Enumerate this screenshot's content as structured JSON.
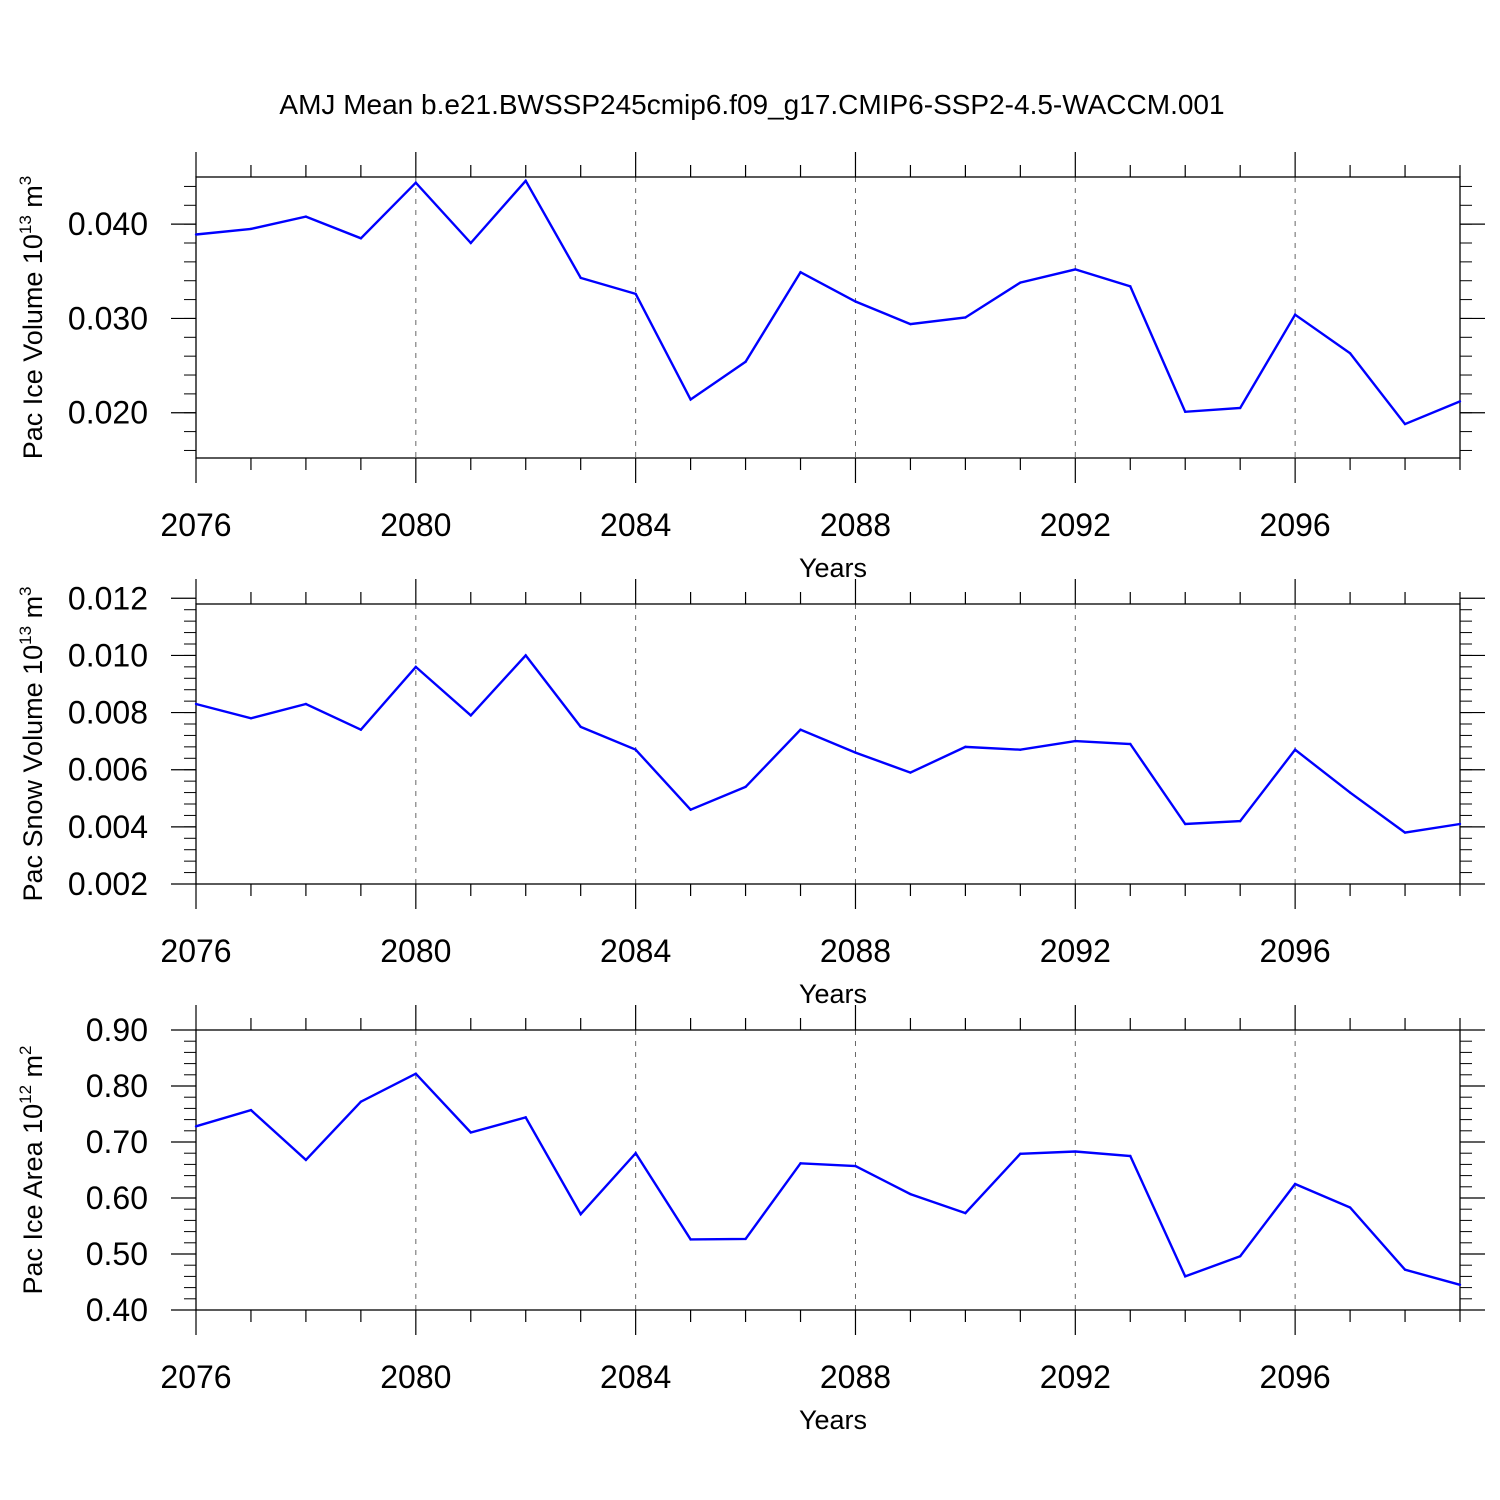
{
  "title": "AMJ Mean b.e21.BWSSP245cmip6.f09_g17.CMIP6-SSP2-4.5-WACCM.001",
  "colors": {
    "series": "#0000ff",
    "axis": "#000000",
    "grid": "#666666"
  },
  "chart_data": [
    {
      "type": "line",
      "xlabel": "Years",
      "ylabel": {
        "prefix": "Pac Ice Volume 10",
        "exponent": "13",
        "unit": " m",
        "unit_exponent": "3"
      },
      "xlim": [
        2076,
        2099
      ],
      "ylim": [
        0.0152,
        0.045
      ],
      "xticks": [
        2076,
        2080,
        2084,
        2088,
        2092,
        2096
      ],
      "xtick_labels": [
        "2076",
        "2080",
        "2084",
        "2088",
        "2092",
        "2096"
      ],
      "yticks": [
        0.02,
        0.03,
        0.04
      ],
      "ytick_labels": [
        "0.020",
        "0.030",
        "0.040"
      ],
      "yminor_step": 0.002,
      "x": [
        2076,
        2077,
        2078,
        2079,
        2080,
        2081,
        2082,
        2083,
        2084,
        2085,
        2086,
        2087,
        2088,
        2089,
        2090,
        2091,
        2092,
        2093,
        2094,
        2095,
        2096,
        2097,
        2098,
        2099
      ],
      "values": [
        0.0389,
        0.0395,
        0.0408,
        0.0385,
        0.0444,
        0.038,
        0.0446,
        0.0343,
        0.0326,
        0.0214,
        0.0254,
        0.0349,
        0.0318,
        0.0294,
        0.0301,
        0.0338,
        0.0352,
        0.0334,
        0.0201,
        0.0205,
        0.0304,
        0.0263,
        0.0188,
        0.0212
      ]
    },
    {
      "type": "line",
      "xlabel": "Years",
      "ylabel": {
        "prefix": "Pac Snow Volume 10",
        "exponent": "13",
        "unit": " m",
        "unit_exponent": "3"
      },
      "xlim": [
        2076,
        2099
      ],
      "ylim": [
        0.002,
        0.0118
      ],
      "xticks": [
        2076,
        2080,
        2084,
        2088,
        2092,
        2096
      ],
      "xtick_labels": [
        "2076",
        "2080",
        "2084",
        "2088",
        "2092",
        "2096"
      ],
      "yticks": [
        0.002,
        0.004,
        0.006,
        0.008,
        0.01,
        0.012
      ],
      "ytick_labels": [
        "0.002",
        "0.004",
        "0.006",
        "0.008",
        "0.010",
        "0.012"
      ],
      "yminor_step": 0.0004,
      "x": [
        2076,
        2077,
        2078,
        2079,
        2080,
        2081,
        2082,
        2083,
        2084,
        2085,
        2086,
        2087,
        2088,
        2089,
        2090,
        2091,
        2092,
        2093,
        2094,
        2095,
        2096,
        2097,
        2098,
        2099
      ],
      "values": [
        0.0083,
        0.0078,
        0.0083,
        0.0074,
        0.0096,
        0.0079,
        0.01,
        0.0075,
        0.0067,
        0.0046,
        0.0054,
        0.0074,
        0.0066,
        0.0059,
        0.0068,
        0.0067,
        0.007,
        0.0069,
        0.0041,
        0.0042,
        0.0067,
        0.0052,
        0.0038,
        0.0041
      ]
    },
    {
      "type": "line",
      "xlabel": "Years",
      "ylabel": {
        "prefix": "Pac Ice Area 10",
        "exponent": "12",
        "unit": " m",
        "unit_exponent": "2"
      },
      "xlim": [
        2076,
        2099
      ],
      "ylim": [
        0.4,
        0.9
      ],
      "xticks": [
        2076,
        2080,
        2084,
        2088,
        2092,
        2096
      ],
      "xtick_labels": [
        "2076",
        "2080",
        "2084",
        "2088",
        "2092",
        "2096"
      ],
      "yticks": [
        0.4,
        0.5,
        0.6,
        0.7,
        0.8,
        0.9
      ],
      "ytick_labels": [
        "0.40",
        "0.50",
        "0.60",
        "0.70",
        "0.80",
        "0.90"
      ],
      "yminor_step": 0.02,
      "x": [
        2076,
        2077,
        2078,
        2079,
        2080,
        2081,
        2082,
        2083,
        2084,
        2085,
        2086,
        2087,
        2088,
        2089,
        2090,
        2091,
        2092,
        2093,
        2094,
        2095,
        2096,
        2097,
        2098,
        2099
      ],
      "values": [
        0.728,
        0.757,
        0.668,
        0.772,
        0.822,
        0.717,
        0.744,
        0.571,
        0.68,
        0.526,
        0.527,
        0.662,
        0.657,
        0.607,
        0.573,
        0.679,
        0.683,
        0.675,
        0.46,
        0.496,
        0.625,
        0.583,
        0.472,
        0.445
      ]
    }
  ]
}
